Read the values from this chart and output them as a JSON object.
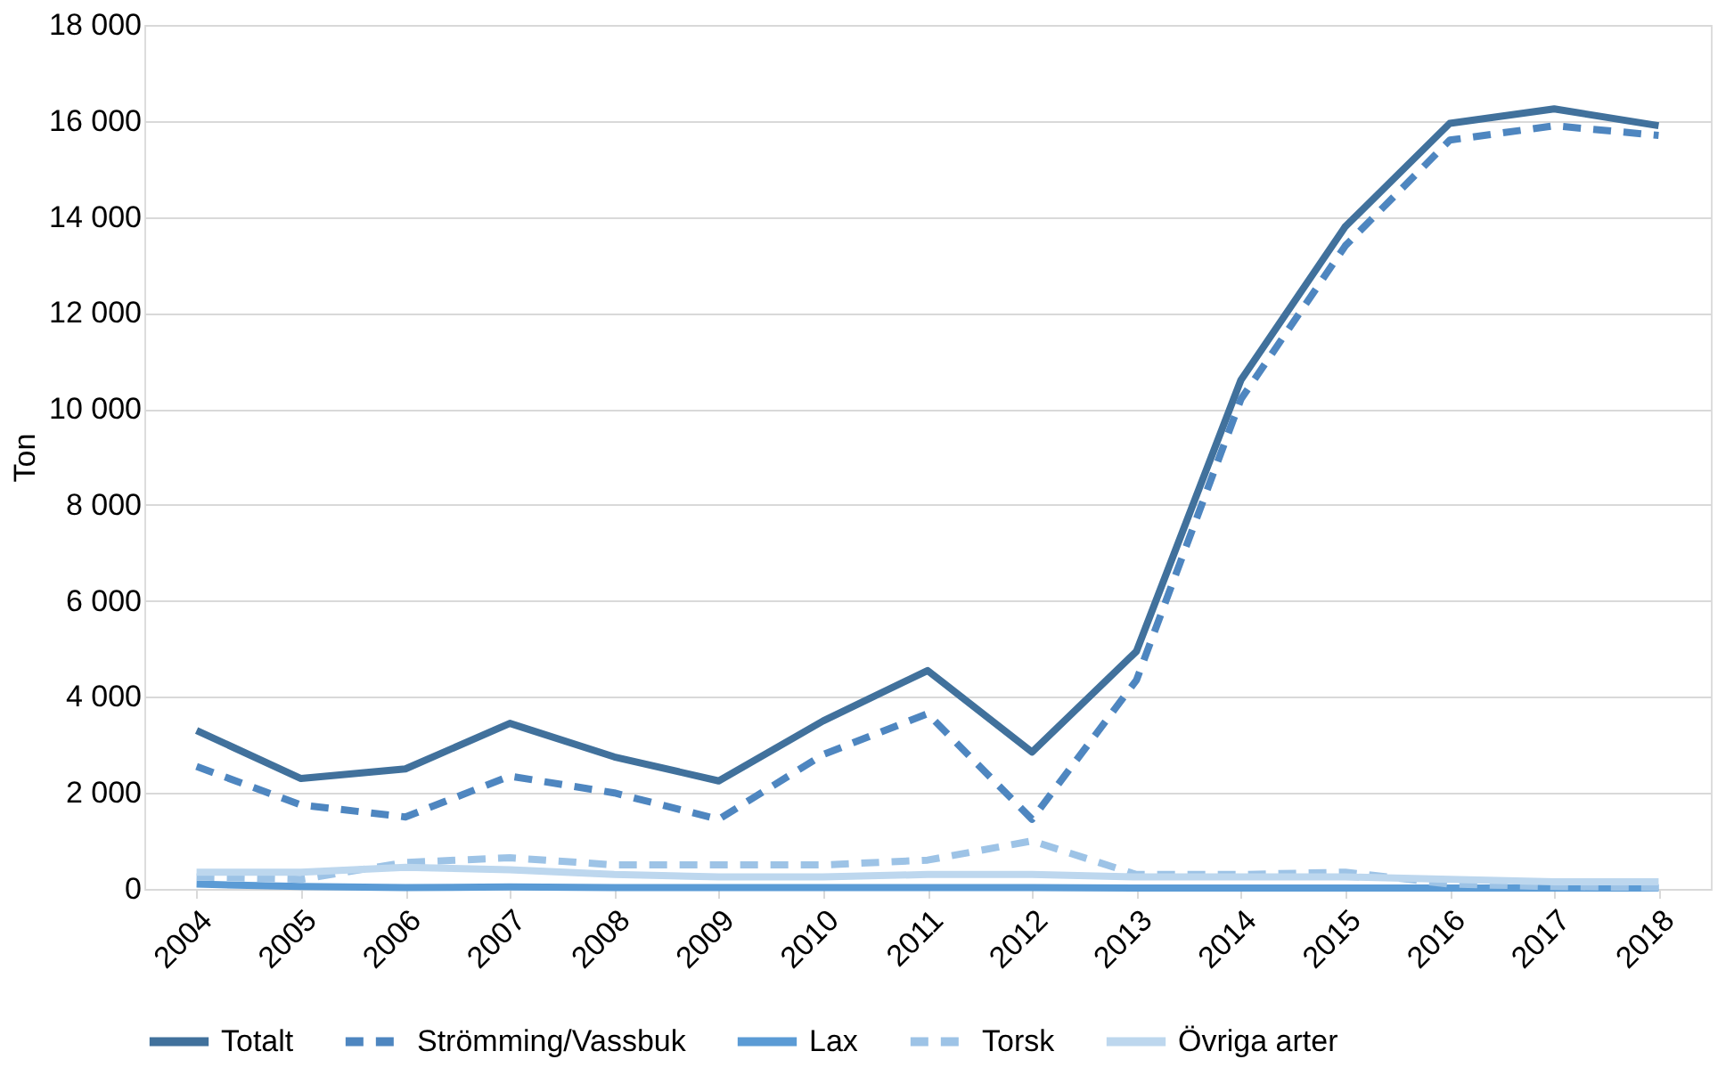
{
  "chart_data": {
    "type": "line",
    "ylabel": "Ton",
    "categories": [
      "2004",
      "2005",
      "2006",
      "2007",
      "2008",
      "2009",
      "2010",
      "2011",
      "2012",
      "2013",
      "2014",
      "2015",
      "2016",
      "2017",
      "2018"
    ],
    "series": [
      {
        "name": "Totalt",
        "color": "#41719c",
        "line_style": "solid",
        "values": [
          3300,
          2300,
          2500,
          3450,
          2750,
          2250,
          3500,
          4550,
          2850,
          4950,
          10600,
          13800,
          15950,
          16250,
          15900
        ]
      },
      {
        "name": "Strömming/Vassbuk",
        "color": "#4e86c0",
        "line_style": "dashed",
        "values": [
          2550,
          1750,
          1500,
          2350,
          2000,
          1450,
          2800,
          3650,
          1450,
          4350,
          10200,
          13400,
          15600,
          15900,
          15700
        ]
      },
      {
        "name": "Lax",
        "color": "#5b9bd5",
        "line_style": "solid",
        "values": [
          100,
          50,
          30,
          40,
          30,
          30,
          30,
          30,
          30,
          20,
          20,
          20,
          20,
          20,
          20
        ]
      },
      {
        "name": "Torsk",
        "color": "#9dc3e6",
        "line_style": "dashed",
        "values": [
          250,
          200,
          550,
          650,
          500,
          500,
          500,
          600,
          1000,
          300,
          300,
          350,
          100,
          50,
          30
        ]
      },
      {
        "name": "Övriga arter",
        "color": "#bdd7ee",
        "line_style": "solid",
        "values": [
          350,
          350,
          450,
          400,
          300,
          250,
          250,
          300,
          300,
          250,
          250,
          250,
          200,
          150,
          150
        ]
      }
    ],
    "ylim": [
      0,
      18000
    ],
    "yticks": [
      {
        "value": 0,
        "label": "0"
      },
      {
        "value": 2000,
        "label": "2 000"
      },
      {
        "value": 4000,
        "label": "4 000"
      },
      {
        "value": 6000,
        "label": "6 000"
      },
      {
        "value": 8000,
        "label": "8 000"
      },
      {
        "value": 10000,
        "label": "10 000"
      },
      {
        "value": 12000,
        "label": "12 000"
      },
      {
        "value": 14000,
        "label": "14 000"
      },
      {
        "value": 16000,
        "label": "16 000"
      },
      {
        "value": 18000,
        "label": "18 000"
      }
    ],
    "grid": "y",
    "legend": "bottom",
    "marker": "none"
  }
}
